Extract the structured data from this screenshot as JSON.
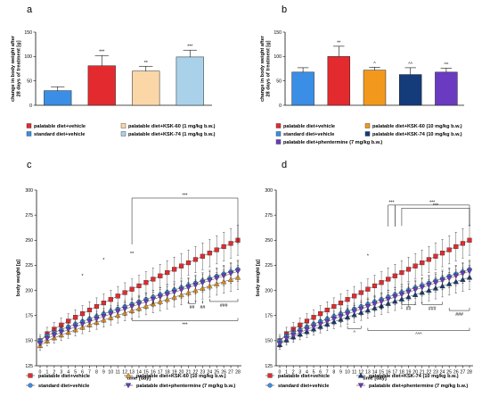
{
  "chart_data": [
    {
      "panel": "a",
      "type": "bar",
      "ylabel": "change in body weight after 28 days of treatment [g]",
      "ylim": [
        0,
        150
      ],
      "yticks": [
        0,
        50,
        100,
        150
      ],
      "bars": [
        {
          "label": "standard diet+vehicle",
          "value": 30,
          "error": 8,
          "color": "#3a8ee6",
          "sig": ""
        },
        {
          "label": "palatable diet+vehicle",
          "value": 81,
          "error": 21,
          "color": "#e32b2f",
          "sig": "***"
        },
        {
          "label": "palatable diet+KSK-60 (1 mg/kg b.w.)",
          "value": 70,
          "error": 10,
          "color": "#fbd7a8",
          "sig": "**"
        },
        {
          "label": "palatable diet+KSK-74 (1 mg/kg b.w.)",
          "value": 99,
          "error": 14,
          "color": "#a9d2ea",
          "sig": "***"
        }
      ],
      "legend": [
        {
          "label": "palatable diet+vehicle",
          "color": "#e32b2f"
        },
        {
          "label": "palatable diet+KSK-60 (1 mg/kg b.w.)",
          "color": "#fbd7a8"
        },
        {
          "label": "standard diet+vehicle",
          "color": "#3a8ee6"
        },
        {
          "label": "palatable diet+KSK-74 (1 mg/kg b.w.)",
          "color": "#a9d2ea"
        }
      ]
    },
    {
      "panel": "b",
      "type": "bar",
      "ylabel": "change in body weight after 28 days of treatment [g]",
      "ylim": [
        0,
        150
      ],
      "yticks": [
        0,
        50,
        100,
        150
      ],
      "bars": [
        {
          "label": "standard diet+vehicle",
          "value": 68,
          "error": 9,
          "color": "#3a8ee6",
          "sig": ""
        },
        {
          "label": "palatable diet+vehicle",
          "value": 100,
          "error": 21,
          "color": "#e32b2f",
          "sig": "**"
        },
        {
          "label": "palatable diet+KSK-60 (10 mg/kg b.w.)",
          "value": 72,
          "error": 6,
          "color": "#f2991d",
          "sig": "^"
        },
        {
          "label": "palatable diet+KSK-74 (10 mg/kg b.w.)",
          "value": 63,
          "error": 14,
          "color": "#143c7a",
          "sig": "^^"
        },
        {
          "label": "palatable diet+phentermine (7 mg/kg b.w.)",
          "value": 68,
          "error": 8,
          "color": "#6a3ac0",
          "sig": "^^"
        }
      ],
      "legend": [
        {
          "label": "palatable diet+vehicle",
          "color": "#e32b2f"
        },
        {
          "label": "palatable diet+KSK-60 (10 mg/kg b.w.)",
          "color": "#f2991d"
        },
        {
          "label": "standard diet+vehicle",
          "color": "#3a8ee6"
        },
        {
          "label": "palatable diet+KSK-74 (10 mg/kg b.w.)",
          "color": "#143c7a"
        },
        {
          "label": "palatable diet+phentermine (7 mg/kg b.w.)",
          "color": "#6a3ac0"
        }
      ]
    },
    {
      "panel": "c",
      "type": "line",
      "xlabel": "time [day]",
      "ylabel": "body weight [g]",
      "xlim": [
        0,
        28
      ],
      "ylim": [
        125,
        300
      ],
      "yticks": [
        125,
        150,
        175,
        200,
        225,
        250,
        275,
        300
      ],
      "xticks": [
        0,
        1,
        2,
        3,
        4,
        5,
        6,
        7,
        8,
        9,
        10,
        11,
        12,
        13,
        14,
        15,
        16,
        17,
        18,
        19,
        20,
        21,
        22,
        23,
        24,
        25,
        26,
        27,
        28
      ],
      "series": [
        {
          "name": "palatable diet+vehicle",
          "color": "#e32b2f",
          "marker": "square",
          "start": 150,
          "end": 250,
          "error": 15
        },
        {
          "name": "standard diet+vehicle",
          "color": "#3a8ee6",
          "marker": "circle",
          "start": 150,
          "end": 221,
          "error": 9
        },
        {
          "name": "palatable diet+KSK-60 (10 mg/kg b.w.)",
          "color": "#f2991d",
          "marker": "triangle-up",
          "start": 145,
          "end": 213,
          "error": 12
        },
        {
          "name": "palatable diet+phentermine (7 mg/kg b.w.)",
          "color": "#6a3ac0",
          "marker": "triangle-down",
          "start": 147,
          "end": 219,
          "error": 10
        }
      ],
      "annotations": [
        "***",
        "*",
        "**",
        "*",
        "#",
        "##",
        "##",
        "###",
        "***"
      ]
    },
    {
      "panel": "d",
      "type": "line",
      "xlabel": "time [day]",
      "ylabel": "body weight [g]",
      "xlim": [
        0,
        28
      ],
      "ylim": [
        125,
        300
      ],
      "yticks": [
        125,
        150,
        175,
        200,
        225,
        250,
        275,
        300
      ],
      "xticks": [
        0,
        1,
        2,
        3,
        4,
        5,
        6,
        7,
        8,
        9,
        10,
        11,
        12,
        13,
        14,
        15,
        16,
        17,
        18,
        19,
        20,
        21,
        22,
        23,
        24,
        25,
        26,
        27,
        28
      ],
      "series": [
        {
          "name": "palatable diet+vehicle",
          "color": "#e32b2f",
          "marker": "square",
          "start": 150,
          "end": 250,
          "error": 15
        },
        {
          "name": "standard diet+vehicle",
          "color": "#3a8ee6",
          "marker": "circle",
          "start": 150,
          "end": 221,
          "error": 9
        },
        {
          "name": "palatable diet+KSK-74 (10 mg/kg b.w.)",
          "color": "#143c7a",
          "marker": "triangle-up",
          "start": 146,
          "end": 213,
          "error": 12
        },
        {
          "name": "palatable diet+phentermine (7 mg/kg b.w.)",
          "color": "#6a3ac0",
          "marker": "triangle-down",
          "start": 147,
          "end": 219,
          "error": 10
        }
      ],
      "annotations": [
        "***",
        "***",
        "***",
        "*",
        "#",
        "##",
        "###",
        "###",
        "^",
        "^^^"
      ]
    }
  ]
}
